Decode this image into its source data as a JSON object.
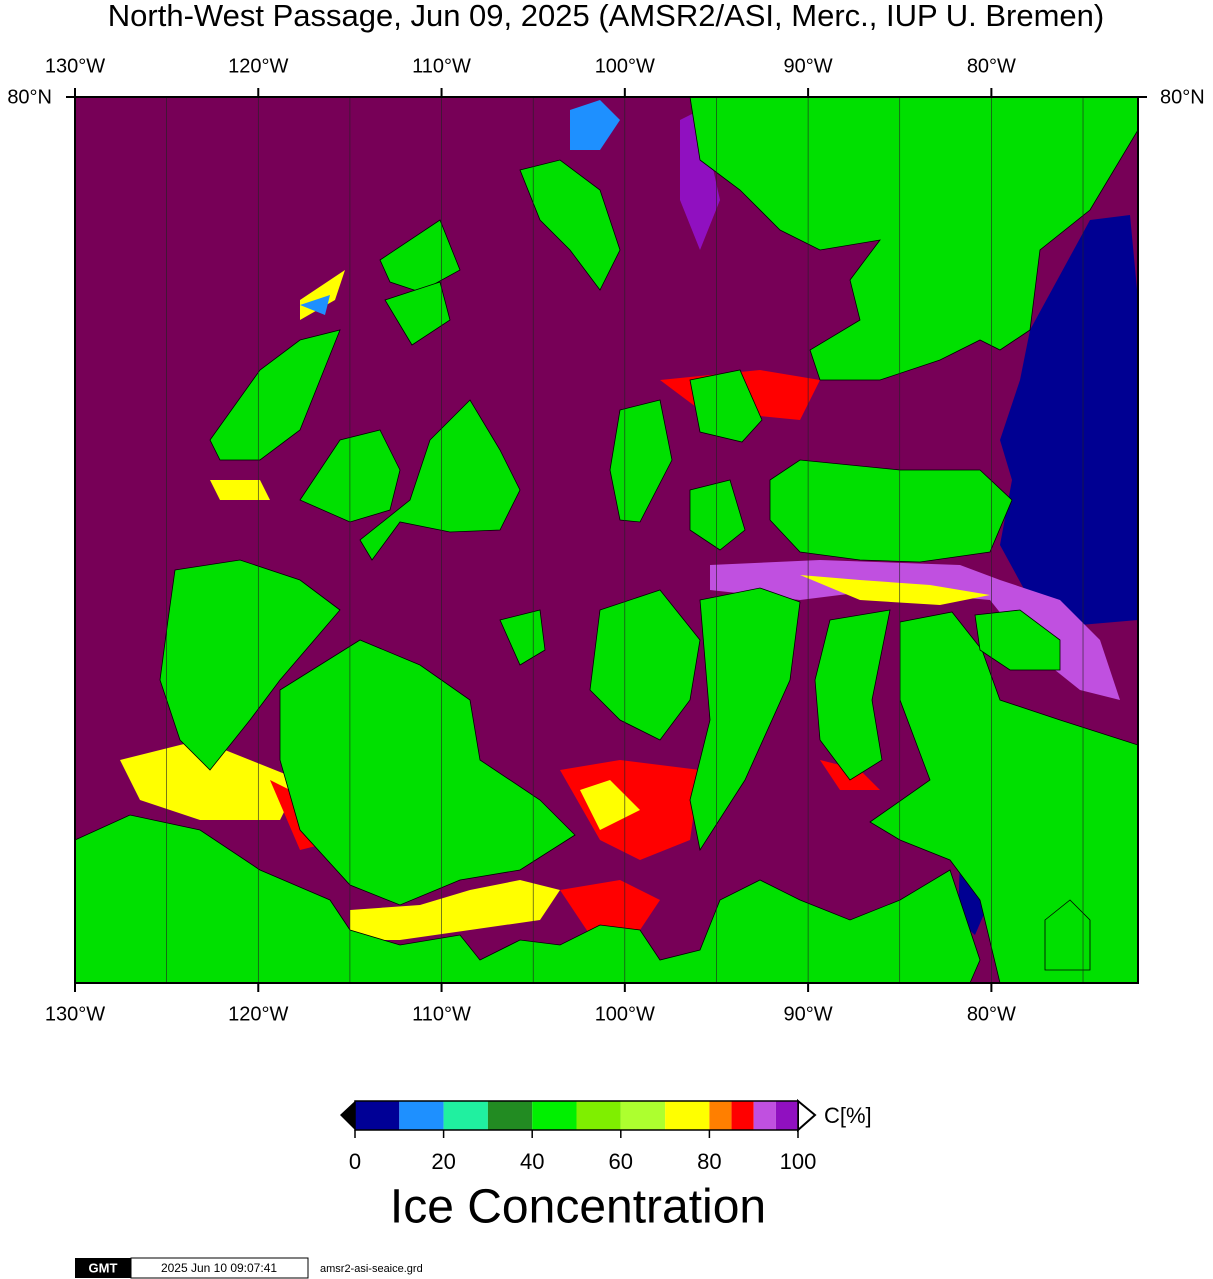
{
  "title": "North-West Passage, Jun 09, 2025 (AMSR2/ASI, Merc., IUP U. Bremen)",
  "map": {
    "xlim": [
      -130,
      -72
    ],
    "lon_ticks": [
      {
        "value": -130,
        "label": "130°W"
      },
      {
        "value": -120,
        "label": "120°W"
      },
      {
        "value": -110,
        "label": "110°W"
      },
      {
        "value": -100,
        "label": "100°W"
      },
      {
        "value": -90,
        "label": "90°W"
      },
      {
        "value": -80,
        "label": "80°W"
      }
    ],
    "lon_grid": [
      -130,
      -125,
      -120,
      -115,
      -110,
      -105,
      -100,
      -95,
      -90,
      -85,
      -80,
      -75
    ],
    "lat_label": "80°N"
  },
  "colorbar": {
    "label": "Ice Concentration",
    "unit": "C[%]",
    "clim": [
      0,
      100
    ],
    "ticks": [
      0,
      20,
      40,
      60,
      80,
      100
    ],
    "bounds": [
      0,
      10,
      20,
      30,
      40,
      50,
      60,
      70,
      80,
      85,
      90,
      95,
      100
    ],
    "colors": [
      "#000096",
      "#1e90ff",
      "#20f0a0",
      "#228b22",
      "#00f000",
      "#7fef00",
      "#adff2f",
      "#ffff00",
      "#ff7f00",
      "#ff0000",
      "#c050e0",
      "#9010c0"
    ]
  },
  "footer": {
    "logo": "GMT",
    "timestamp": "2025 Jun 10 09:07:41",
    "file": "amsr2-asi-seaice.grd"
  }
}
